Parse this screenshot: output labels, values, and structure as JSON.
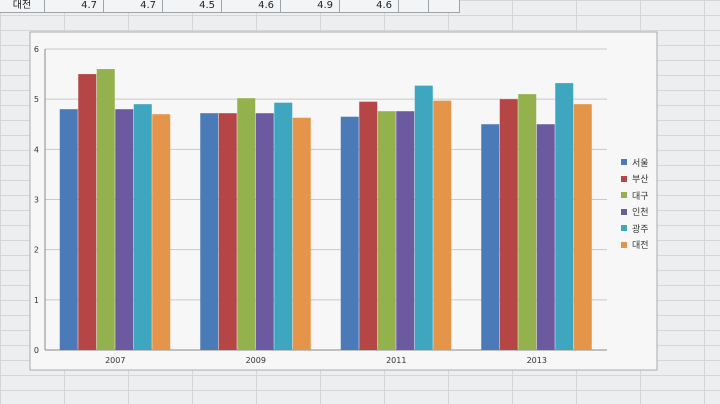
{
  "table_strip": [
    "대전",
    "4.7",
    "4.7",
    "4.5",
    "4.6",
    "4.9",
    "4.6",
    "",
    ""
  ],
  "chart_data": {
    "type": "bar",
    "categories": [
      "2007",
      "2009",
      "2011",
      "2013"
    ],
    "series": [
      {
        "name": "서울",
        "color": "#4a7ab8",
        "values": [
          4.8,
          4.72,
          4.65,
          4.5
        ]
      },
      {
        "name": "부산",
        "color": "#b64646",
        "values": [
          5.5,
          4.72,
          4.95,
          5.0
        ]
      },
      {
        "name": "대구",
        "color": "#93b24d",
        "values": [
          5.6,
          5.02,
          4.76,
          5.1
        ]
      },
      {
        "name": "인천",
        "color": "#6c5aa0",
        "values": [
          4.8,
          4.72,
          4.76,
          4.5
        ]
      },
      {
        "name": "광주",
        "color": "#3fa6c0",
        "values": [
          4.9,
          4.93,
          5.27,
          5.32
        ]
      },
      {
        "name": "대전",
        "color": "#e5954a",
        "values": [
          4.7,
          4.63,
          4.97,
          4.9
        ]
      }
    ],
    "yticks": [
      "0",
      "1",
      "2",
      "3",
      "4",
      "5",
      "6"
    ],
    "ylim": [
      0,
      6
    ],
    "grid": true,
    "legend": "right"
  }
}
